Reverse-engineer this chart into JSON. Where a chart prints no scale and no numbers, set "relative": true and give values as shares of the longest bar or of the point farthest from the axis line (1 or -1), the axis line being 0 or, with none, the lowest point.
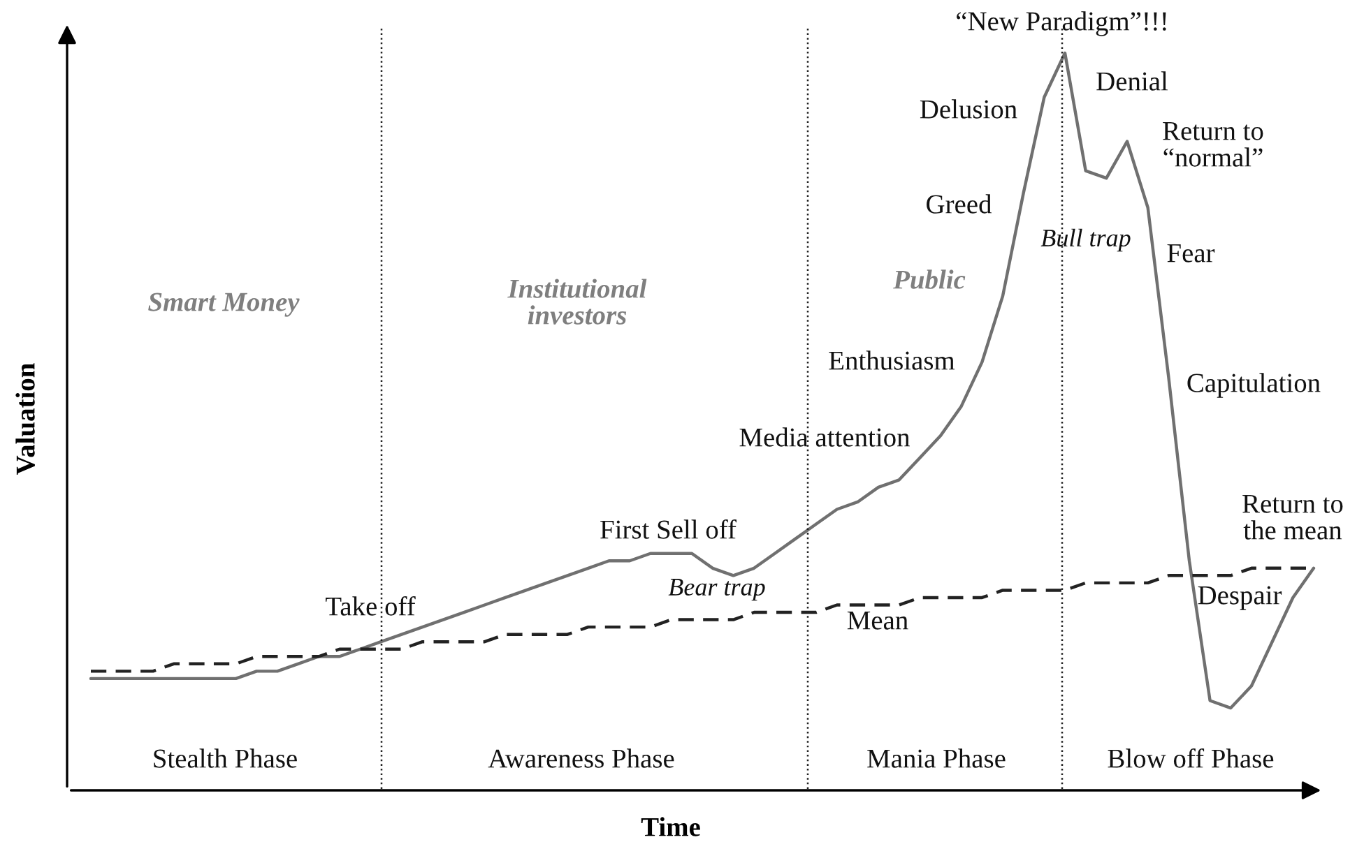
{
  "chart_data": {
    "type": "line",
    "relative": true,
    "xlabel": "Time",
    "ylabel": "Valuation",
    "categories": [
      null,
      null,
      null,
      null,
      null,
      null,
      null,
      null,
      null,
      null,
      null,
      null,
      null,
      null,
      null,
      null,
      null,
      null,
      null,
      null,
      null,
      null,
      null,
      null,
      null,
      null,
      null,
      null,
      null,
      null,
      null,
      null,
      null,
      null,
      null,
      null,
      null,
      null,
      null,
      null,
      null,
      null,
      null,
      null,
      null,
      null,
      null,
      null,
      null,
      null,
      null,
      null,
      null,
      null,
      null,
      null,
      null,
      null,
      null,
      null
    ],
    "series": [
      {
        "color": "#707070",
        "line_style": "solid",
        "values": [
          0.15,
          0.15,
          0.15,
          0.15,
          0.15,
          0.15,
          0.15,
          0.15,
          0.16,
          0.16,
          0.17,
          0.18,
          0.18,
          0.19,
          0.2,
          0.21,
          0.22,
          0.23,
          0.24,
          0.25,
          0.26,
          0.27,
          0.28,
          0.29,
          0.3,
          0.31,
          0.31,
          0.32,
          0.32,
          0.32,
          0.3,
          0.29,
          0.3,
          0.32,
          0.34,
          0.36,
          0.38,
          0.39,
          0.41,
          0.42,
          0.45,
          0.48,
          0.52,
          0.58,
          0.67,
          0.81,
          0.94,
          1,
          0.84,
          0.83,
          0.88,
          0.79,
          0.56,
          0.31,
          0.12,
          0.11,
          0.14,
          0.2,
          0.26,
          0.3
        ]
      },
      {
        "name": "Mean",
        "color": "#222222",
        "line_style": "dashed",
        "values": [
          0.16,
          0.16,
          0.16,
          0.16,
          0.17,
          0.17,
          0.17,
          0.17,
          0.18,
          0.18,
          0.18,
          0.18,
          0.19,
          0.19,
          0.19,
          0.19,
          0.2,
          0.2,
          0.2,
          0.2,
          0.21,
          0.21,
          0.21,
          0.21,
          0.22,
          0.22,
          0.22,
          0.22,
          0.23,
          0.23,
          0.23,
          0.23,
          0.24,
          0.24,
          0.24,
          0.24,
          0.25,
          0.25,
          0.25,
          0.25,
          0.26,
          0.26,
          0.26,
          0.26,
          0.27,
          0.27,
          0.27,
          0.27,
          0.28,
          0.28,
          0.28,
          0.28,
          0.29,
          0.29,
          0.29,
          0.29,
          0.3,
          0.3,
          0.3,
          0.3
        ]
      }
    ],
    "annotations": [
      "Stealth Phase",
      "Awareness Phase",
      "Mania Phase",
      "Blow off Phase",
      "Smart Money",
      "Institutional\ninvestors",
      "Public",
      "Take off",
      "First Sell off",
      "Bear trap",
      "Media attention",
      "Enthusiasm",
      "Greed",
      "Delusion",
      "“New Paradigm”!!!",
      "Bull trap",
      "Denial",
      "Return to\n“normal”",
      "Fear",
      "Capitulation",
      "Return to\nthe mean",
      "Despair"
    ],
    "legend": false,
    "marker": "none"
  }
}
